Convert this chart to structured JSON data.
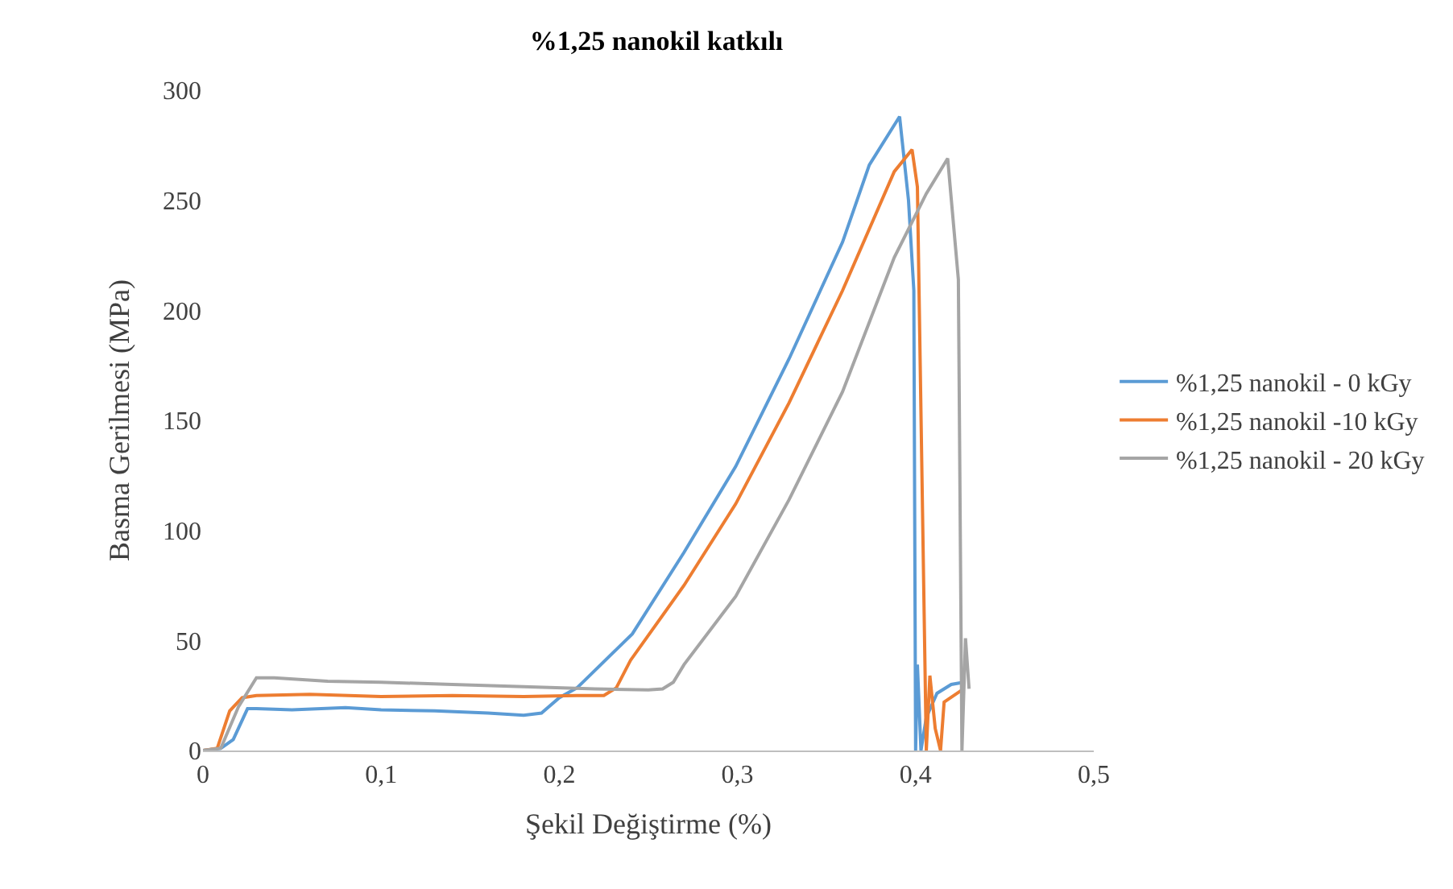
{
  "chart_data": {
    "type": "line",
    "title": "%1,25 nanokil katkılı",
    "xlabel": "Şekil Değiştirme (%)",
    "ylabel": "Basma Gerilmesi (MPa)",
    "xlim": [
      0,
      0.5
    ],
    "xticks": [
      {
        "value": 0,
        "label": "0"
      },
      {
        "value": 0.1,
        "label": "0,1"
      },
      {
        "value": 0.2,
        "label": "0,2"
      },
      {
        "value": 0.3,
        "label": "0,3"
      },
      {
        "value": 0.4,
        "label": "0,4"
      },
      {
        "value": 0.5,
        "label": "0,5"
      }
    ],
    "ylim": [
      0,
      300
    ],
    "yticks": [
      0,
      50,
      100,
      150,
      200,
      250,
      300
    ],
    "grid": false,
    "legend": "right",
    "marker": "none",
    "line_style": "solid",
    "series": [
      {
        "name": "%1,25 nanokil - 0 kGy",
        "color": "#5b9bd5",
        "x": [
          0,
          0.01,
          0.017,
          0.025,
          0.03,
          0.05,
          0.08,
          0.1,
          0.13,
          0.16,
          0.18,
          0.19,
          0.2,
          0.21,
          0.241,
          0.27,
          0.299,
          0.329,
          0.359,
          0.374,
          0.391,
          0.396,
          0.399,
          0.4,
          0.401,
          0.403,
          0.406,
          0.412,
          0.42,
          0.427
        ],
        "values": [
          0,
          1,
          5,
          19,
          19,
          18.5,
          19.5,
          18.5,
          18,
          17,
          16,
          17,
          24,
          28.5,
          53,
          90,
          129,
          178,
          231,
          266,
          288,
          250,
          209,
          0,
          39,
          0,
          15,
          26,
          30,
          31
        ]
      },
      {
        "name": "%1,25 nanokil -10 kGy",
        "color": "#ed7d31",
        "x": [
          0,
          0.008,
          0.015,
          0.022,
          0.03,
          0.06,
          0.1,
          0.14,
          0.18,
          0.21,
          0.225,
          0.232,
          0.24,
          0.27,
          0.299,
          0.329,
          0.359,
          0.388,
          0.398,
          0.401,
          0.406,
          0.408,
          0.411,
          0.414,
          0.416,
          0.427
        ],
        "values": [
          0,
          1,
          18,
          24,
          25,
          25.5,
          24.5,
          25,
          24.5,
          25,
          25,
          28.5,
          41,
          75,
          112,
          158,
          209,
          263,
          273,
          256,
          0,
          34,
          10,
          0,
          22,
          28
        ]
      },
      {
        "name": "%1,25 nanokil - 20 kGy",
        "color": "#a5a5a5",
        "x": [
          0,
          0.01,
          0.02,
          0.03,
          0.04,
          0.07,
          0.1,
          0.14,
          0.18,
          0.22,
          0.25,
          0.258,
          0.264,
          0.27,
          0.299,
          0.329,
          0.359,
          0.388,
          0.406,
          0.418,
          0.424,
          0.426,
          0.428,
          0.43
        ],
        "values": [
          0,
          1,
          20,
          33,
          33,
          31.5,
          31,
          30,
          29,
          28,
          27.5,
          28,
          31,
          39,
          70,
          114,
          163,
          224,
          253,
          269,
          214,
          0,
          51,
          28
        ]
      }
    ]
  }
}
